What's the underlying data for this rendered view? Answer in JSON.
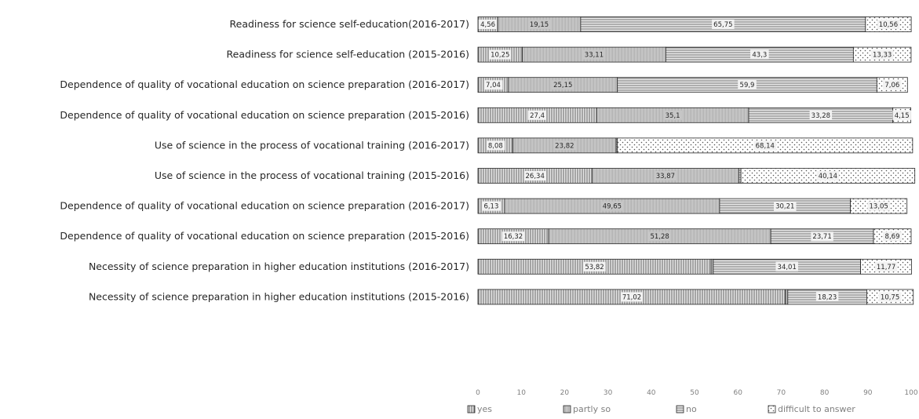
{
  "chart_data": {
    "type": "bar",
    "orientation": "horizontal",
    "stacked": true,
    "categories": [
      "Readiness for science self-education(2016-2017)",
      "Readiness for science self-education (2015-2016)",
      "Dependence of quality of vocational education on science preparation (2016-2017)",
      "Dependence of quality of vocational education on science preparation (2015-2016)",
      "Use of science in the process of vocational training (2016-2017)",
      "Use of science in the process of vocational training (2015-2016)",
      "Dependence of quality of vocational education on science preparation (2016-2017)",
      "Dependence of quality of vocational education on science preparation (2015-2016)",
      "Necessity of science preparation in higher education institutions (2016-2017)",
      "Necessity of science preparation in higher education institutions (2015-2016)"
    ],
    "series": [
      {
        "name": "yes",
        "values": [
          4.56,
          10.25,
          7.04,
          27.4,
          8.08,
          26.34,
          6.13,
          16.32,
          53.82,
          71.02
        ],
        "labels": [
          "4,56",
          "10,25",
          "7,04",
          "27,4",
          "8,08",
          "26,34",
          "6,13",
          "16,32",
          "53,82",
          "71,02"
        ]
      },
      {
        "name": "partly so",
        "values": [
          19.15,
          33.11,
          25.15,
          35.1,
          23.82,
          33.87,
          49.65,
          51.28,
          0.5,
          0.5
        ],
        "labels": [
          "19,15",
          "33,11",
          "25,15",
          "35,1",
          "23,82",
          "33,87",
          "49,65",
          "51,28",
          "",
          ""
        ]
      },
      {
        "name": "no",
        "values": [
          65.75,
          43.3,
          59.9,
          33.28,
          0.3,
          0.5,
          30.21,
          23.71,
          34.01,
          18.23
        ],
        "labels": [
          "65,75",
          "43,3",
          "59,9",
          "33,28",
          "",
          "",
          "30,21",
          "23,71",
          "34,01",
          "18,23"
        ]
      },
      {
        "name": "difficult to answer",
        "values": [
          10.56,
          13.33,
          7.06,
          4.15,
          68.14,
          40.14,
          13.05,
          8.69,
          11.77,
          10.75
        ],
        "labels": [
          "10,56",
          "13,33",
          "7,06",
          "4,15",
          "68,14",
          "40,14",
          "13,05",
          "8,69",
          "11,77",
          "10,75"
        ]
      }
    ],
    "xlim": [
      0,
      100
    ],
    "xticks": [
      "0",
      "10",
      "20",
      "30",
      "40",
      "50",
      "60",
      "70",
      "80",
      "90",
      "100"
    ],
    "grid": false,
    "legend_position": "bottom",
    "colors": {
      "bar_fill": "#bfbfbf",
      "bar_fill_alt": "#d0d0d0",
      "stroke": "#262626",
      "text": "#262626",
      "muted_text": "#7f7f7f",
      "background": "#ffffff"
    }
  }
}
